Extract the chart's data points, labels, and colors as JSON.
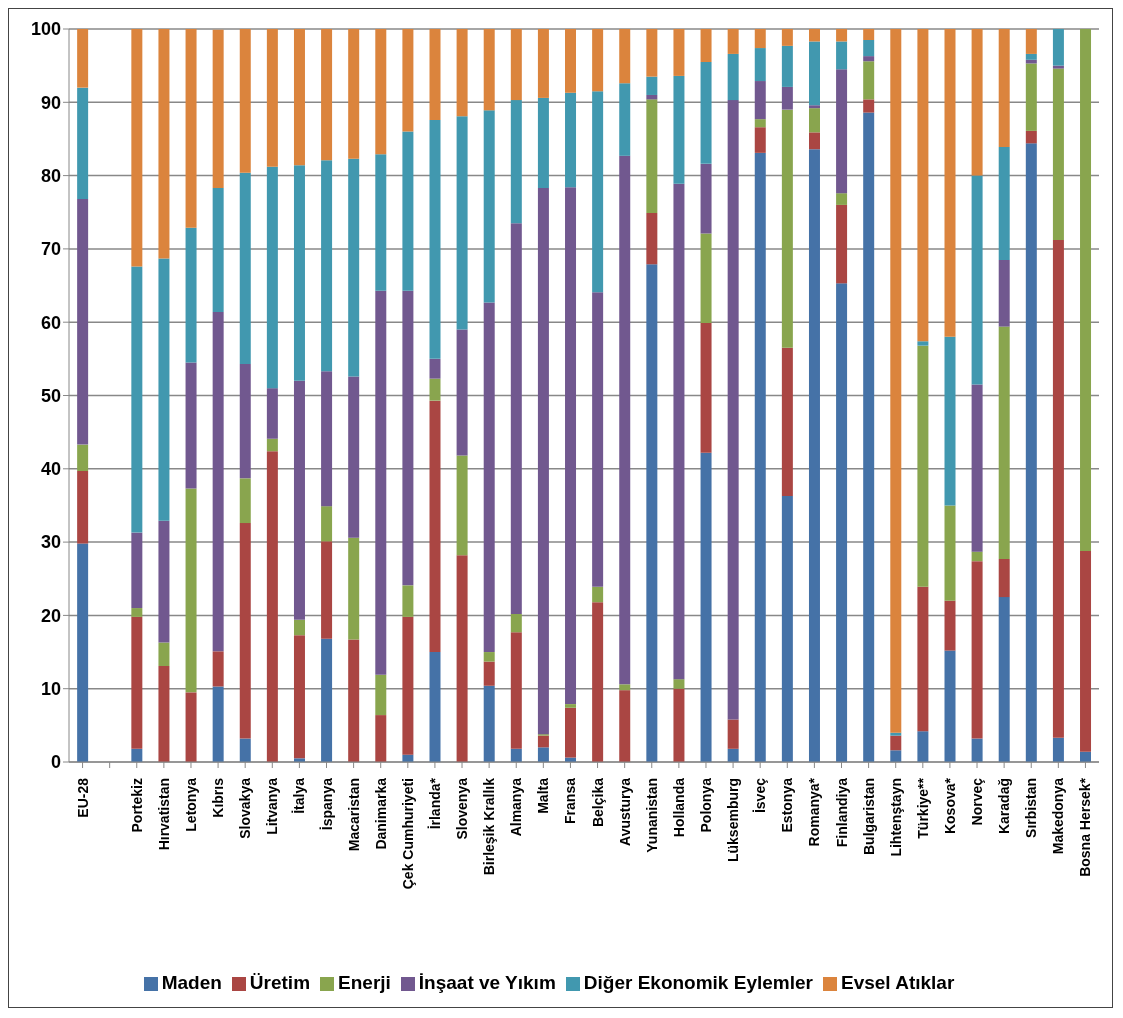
{
  "chart_data": {
    "type": "bar",
    "stacked": true,
    "categories": [
      "EU-28",
      null,
      "Portekiz",
      "Hırvatistan",
      "Letonya",
      "Kıbrıs",
      "Slovakya",
      "Litvanya",
      "İtalya",
      "İspanya",
      "Macaristan",
      "Danimarka",
      "Çek Cumhuriyeti",
      "İrlanda*",
      "Slovenya",
      "Birleşik Krallık",
      "Almanya",
      "Malta",
      "Fransa",
      "Belçika",
      "Avusturya",
      "Yunanistan",
      "Hollanda",
      "Polonya",
      "Lüksemburg",
      "İsveç",
      "Estonya",
      "Romanya*",
      "Finlandiya",
      "Bulgaristan",
      "Lihtenştayn",
      "Türkiye**",
      "Kosova*",
      "Norveç",
      "Karadağ",
      "Sırbistan",
      "Makedonya",
      "Bosna Hersek*"
    ],
    "series": [
      {
        "name": "Maden",
        "color": "#4572a7",
        "values": [
          29.8,
          null,
          1.8,
          0,
          0,
          10.3,
          3.2,
          0,
          0.5,
          16.8,
          0,
          0,
          1.0,
          15.0,
          0,
          10.4,
          1.8,
          2.0,
          0.6,
          0,
          0,
          67.9,
          0,
          42.2,
          1.8,
          83.1,
          36.3,
          83.6,
          65.3,
          88.6,
          1.6,
          4.2,
          15.2,
          3.2,
          22.5,
          84.4,
          3.3,
          1.4
        ]
      },
      {
        "name": "Üretim",
        "color": "#aa4643",
        "values": [
          9.9,
          null,
          18.0,
          13.1,
          9.5,
          4.8,
          29.4,
          42.4,
          16.8,
          13.3,
          16.7,
          6.4,
          18.8,
          34.3,
          28.2,
          3.3,
          15.9,
          1.6,
          6.8,
          21.8,
          9.8,
          7.0,
          10.0,
          17.7,
          4.0,
          3.5,
          20.2,
          2.3,
          10.7,
          1.8,
          2.0,
          19.7,
          6.8,
          24.2,
          5.2,
          1.7,
          67.9,
          27.4
        ]
      },
      {
        "name": "Enerji",
        "color": "#89a54e",
        "values": [
          3.6,
          null,
          1.2,
          3.2,
          27.8,
          0,
          6.1,
          1.7,
          2.1,
          4.8,
          13.9,
          5.5,
          4.3,
          3.0,
          13.6,
          1.3,
          2.5,
          0.2,
          0.5,
          2.1,
          0.8,
          15.5,
          1.3,
          12.2,
          0,
          1.1,
          32.5,
          3.3,
          1.6,
          5.2,
          0,
          32.9,
          13.0,
          1.3,
          31.7,
          9.2,
          23.4,
          71.2
        ]
      },
      {
        "name": "İnşaat ve Yıkım",
        "color": "#71588f",
        "values": [
          33.5,
          null,
          10.3,
          16.6,
          17.2,
          46.3,
          15.6,
          6.9,
          32.6,
          18.4,
          22.0,
          52.4,
          40.2,
          2.7,
          17.2,
          47.7,
          53.3,
          74.5,
          70.5,
          40.2,
          72.1,
          0.6,
          67.6,
          9.5,
          84.5,
          5.2,
          3.1,
          0.4,
          16.9,
          0.7,
          0,
          0,
          0,
          22.8,
          9.1,
          0.5,
          0.4,
          0
        ]
      },
      {
        "name": "Diğer Ekonomik Eylemler",
        "color": "#4198af",
        "values": [
          15.2,
          null,
          36.3,
          35.8,
          18.4,
          16.9,
          26.1,
          30.2,
          29.4,
          28.8,
          29.7,
          18.6,
          21.7,
          32.6,
          29.1,
          26.2,
          16.8,
          12.3,
          12.9,
          27.4,
          9.9,
          2.5,
          14.7,
          13.9,
          6.3,
          4.5,
          5.6,
          8.7,
          3.8,
          2.2,
          0.4,
          0.6,
          23.0,
          28.5,
          15.4,
          0.8,
          5.0,
          0
        ]
      },
      {
        "name": "Evsel Atıklar",
        "color": "#db843d",
        "values": [
          8.0,
          null,
          32.4,
          31.3,
          27.1,
          21.6,
          19.6,
          18.8,
          18.6,
          17.9,
          17.7,
          17.1,
          14.0,
          12.4,
          11.9,
          11.1,
          9.7,
          9.4,
          8.7,
          8.5,
          7.4,
          6.5,
          6.4,
          4.5,
          3.4,
          2.6,
          2.3,
          1.7,
          1.7,
          1.5,
          96.0,
          42.6,
          42.0,
          20.0,
          16.1,
          3.4,
          0,
          0
        ]
      }
    ],
    "ylim": [
      0,
      100
    ],
    "yticks": [
      0,
      10,
      20,
      30,
      40,
      50,
      60,
      70,
      80,
      90,
      100
    ],
    "grid": "y",
    "legend": "bottom"
  }
}
